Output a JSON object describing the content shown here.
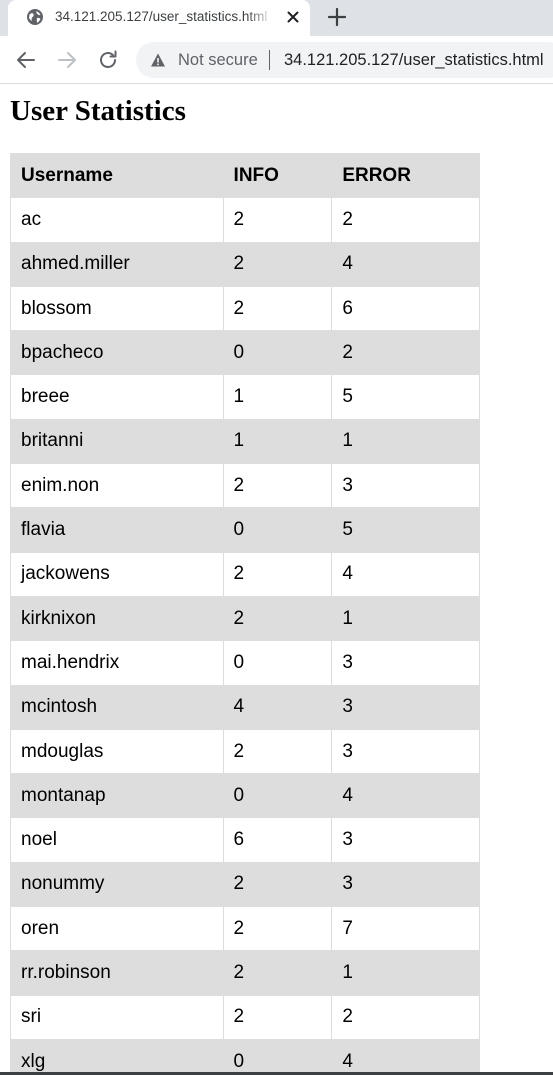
{
  "browser": {
    "tab_title": "34.121.205.127/user_statistics.html",
    "security_label": "Not secure",
    "url": "34.121.205.127/user_statistics.html"
  },
  "page": {
    "title": "User Statistics"
  },
  "table": {
    "headers": [
      "Username",
      "INFO",
      "ERROR"
    ],
    "rows": [
      [
        "ac",
        "2",
        "2"
      ],
      [
        "ahmed.miller",
        "2",
        "4"
      ],
      [
        "blossom",
        "2",
        "6"
      ],
      [
        "bpacheco",
        "0",
        "2"
      ],
      [
        "breee",
        "1",
        "5"
      ],
      [
        "britanni",
        "1",
        "1"
      ],
      [
        "enim.non",
        "2",
        "3"
      ],
      [
        "flavia",
        "0",
        "5"
      ],
      [
        "jackowens",
        "2",
        "4"
      ],
      [
        "kirknixon",
        "2",
        "1"
      ],
      [
        "mai.hendrix",
        "0",
        "3"
      ],
      [
        "mcintosh",
        "4",
        "3"
      ],
      [
        "mdouglas",
        "2",
        "3"
      ],
      [
        "montanap",
        "0",
        "4"
      ],
      [
        "noel",
        "6",
        "3"
      ],
      [
        "nonummy",
        "2",
        "3"
      ],
      [
        "oren",
        "2",
        "7"
      ],
      [
        "rr.robinson",
        "2",
        "1"
      ],
      [
        "sri",
        "2",
        "2"
      ],
      [
        "xlg",
        "0",
        "4"
      ]
    ]
  },
  "icons": {
    "tab_favicon": "globe-icon",
    "tab_close": "close-icon",
    "new_tab": "plus-icon",
    "back": "arrow-left-icon",
    "forward": "arrow-right-icon",
    "reload": "reload-icon",
    "security": "warning-triangle-icon"
  }
}
